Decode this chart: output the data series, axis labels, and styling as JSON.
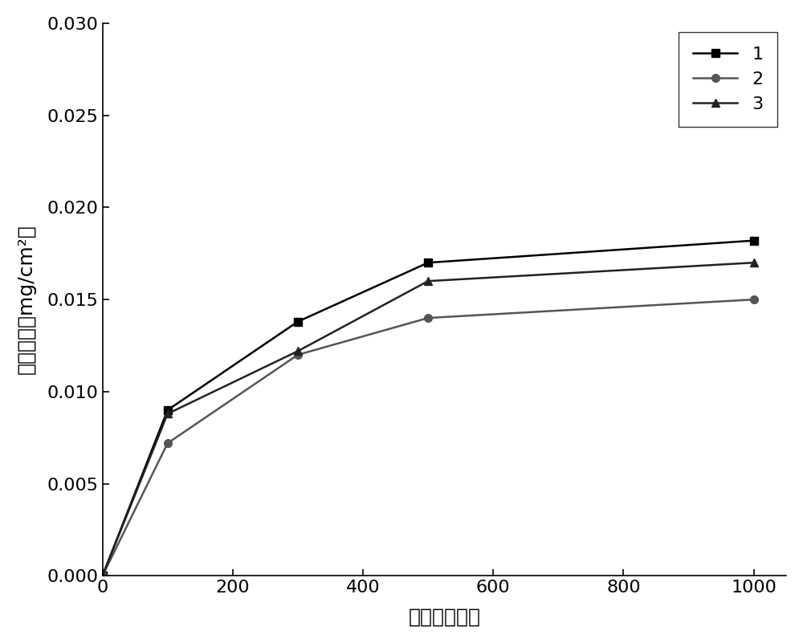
{
  "series": [
    {
      "label": "1",
      "x": [
        0,
        100,
        300,
        500,
        1000
      ],
      "y": [
        0.0,
        0.009,
        0.0138,
        0.017,
        0.0182
      ],
      "color": "#000000",
      "marker": "s",
      "linewidth": 1.8,
      "markersize": 7
    },
    {
      "label": "2",
      "x": [
        0,
        100,
        300,
        500,
        1000
      ],
      "y": [
        0.0,
        0.0072,
        0.012,
        0.014,
        0.015
      ],
      "color": "#555555",
      "marker": "o",
      "linewidth": 1.8,
      "markersize": 7
    },
    {
      "label": "3",
      "x": [
        0,
        100,
        300,
        500,
        1000
      ],
      "y": [
        0.0,
        0.0088,
        0.0122,
        0.016,
        0.017
      ],
      "color": "#222222",
      "marker": "^",
      "linewidth": 1.8,
      "markersize": 7
    }
  ],
  "xlabel": "时间（小时）",
  "ylabel": "质量变化（mg/cm²）",
  "xlim": [
    0,
    1050
  ],
  "ylim": [
    0.0,
    0.03
  ],
  "xticks": [
    0,
    200,
    400,
    600,
    800,
    1000
  ],
  "yticks": [
    0.0,
    0.005,
    0.01,
    0.015,
    0.02,
    0.025,
    0.03
  ],
  "legend_loc": "upper right",
  "tick_fontsize": 16,
  "label_fontsize": 18,
  "legend_fontsize": 16,
  "figure_bg": "#ffffff",
  "axes_bg": "#ffffff"
}
